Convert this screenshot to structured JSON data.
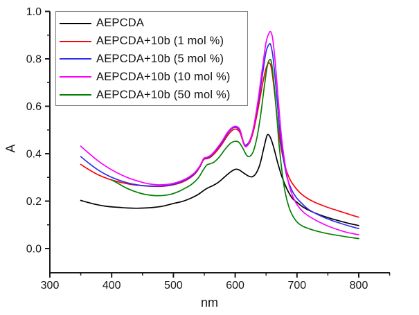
{
  "chart_data": {
    "type": "line",
    "title": "",
    "xlabel": "nm",
    "ylabel": "A",
    "xlim": [
      300,
      850
    ],
    "ylim": [
      -0.1,
      1.0
    ],
    "grid": false,
    "legend_position": "top-left",
    "x_ticks": [
      300,
      400,
      500,
      600,
      700,
      800
    ],
    "x_tick_labels": [
      "300",
      "400",
      "500",
      "600",
      "700",
      "800"
    ],
    "x_minor_ticks": [
      350,
      450,
      550,
      650,
      750,
      850
    ],
    "y_ticks": [
      0.0,
      0.2,
      0.4,
      0.6,
      0.8,
      1.0
    ],
    "y_tick_labels": [
      "0.0",
      "0.2",
      "0.4",
      "0.6",
      "0.8",
      "1.0"
    ],
    "y_minor_ticks": [
      0.1,
      0.3,
      0.5,
      0.7,
      0.9
    ],
    "axis_color": "#1a1a1a",
    "series": [
      {
        "name": "AEPCDA",
        "color": "#000000",
        "points": [
          [
            350,
            0.203
          ],
          [
            365,
            0.192
          ],
          [
            380,
            0.183
          ],
          [
            395,
            0.177
          ],
          [
            410,
            0.174
          ],
          [
            425,
            0.171
          ],
          [
            440,
            0.17
          ],
          [
            455,
            0.171
          ],
          [
            470,
            0.174
          ],
          [
            485,
            0.18
          ],
          [
            500,
            0.19
          ],
          [
            515,
            0.199
          ],
          [
            528,
            0.212
          ],
          [
            540,
            0.228
          ],
          [
            548,
            0.243
          ],
          [
            555,
            0.255
          ],
          [
            562,
            0.263
          ],
          [
            572,
            0.278
          ],
          [
            582,
            0.3
          ],
          [
            592,
            0.322
          ],
          [
            600,
            0.334
          ],
          [
            606,
            0.332
          ],
          [
            614,
            0.318
          ],
          [
            622,
            0.305
          ],
          [
            628,
            0.303
          ],
          [
            634,
            0.318
          ],
          [
            640,
            0.355
          ],
          [
            646,
            0.42
          ],
          [
            651,
            0.473
          ],
          [
            654,
            0.48
          ],
          [
            658,
            0.462
          ],
          [
            663,
            0.42
          ],
          [
            669,
            0.36
          ],
          [
            676,
            0.3
          ],
          [
            684,
            0.25
          ],
          [
            692,
            0.213
          ],
          [
            700,
            0.195
          ],
          [
            710,
            0.175
          ],
          [
            722,
            0.158
          ],
          [
            736,
            0.143
          ],
          [
            752,
            0.129
          ],
          [
            768,
            0.117
          ],
          [
            784,
            0.106
          ],
          [
            800,
            0.097
          ]
        ]
      },
      {
        "name": "AEPCDA+10b (1 mol %)",
        "color": "#fb0207",
        "points": [
          [
            350,
            0.355
          ],
          [
            363,
            0.333
          ],
          [
            376,
            0.314
          ],
          [
            390,
            0.298
          ],
          [
            404,
            0.286
          ],
          [
            418,
            0.277
          ],
          [
            432,
            0.27
          ],
          [
            446,
            0.266
          ],
          [
            460,
            0.263
          ],
          [
            474,
            0.262
          ],
          [
            488,
            0.264
          ],
          [
            500,
            0.269
          ],
          [
            512,
            0.278
          ],
          [
            524,
            0.293
          ],
          [
            535,
            0.315
          ],
          [
            543,
            0.345
          ],
          [
            549,
            0.375
          ],
          [
            554,
            0.379
          ],
          [
            560,
            0.385
          ],
          [
            568,
            0.405
          ],
          [
            578,
            0.438
          ],
          [
            588,
            0.478
          ],
          [
            596,
            0.5
          ],
          [
            602,
            0.503
          ],
          [
            608,
            0.488
          ],
          [
            614,
            0.44
          ],
          [
            618,
            0.432
          ],
          [
            624,
            0.45
          ],
          [
            630,
            0.5
          ],
          [
            637,
            0.588
          ],
          [
            644,
            0.69
          ],
          [
            650,
            0.76
          ],
          [
            655,
            0.783
          ],
          [
            659,
            0.755
          ],
          [
            664,
            0.65
          ],
          [
            669,
            0.52
          ],
          [
            675,
            0.415
          ],
          [
            681,
            0.345
          ],
          [
            688,
            0.295
          ],
          [
            696,
            0.262
          ],
          [
            705,
            0.235
          ],
          [
            716,
            0.213
          ],
          [
            728,
            0.196
          ],
          [
            742,
            0.181
          ],
          [
            756,
            0.168
          ],
          [
            772,
            0.155
          ],
          [
            786,
            0.143
          ],
          [
            800,
            0.132
          ]
        ]
      },
      {
        "name": "AEPCDA+10b (5 mol %)",
        "color": "#2e2eea",
        "points": [
          [
            350,
            0.388
          ],
          [
            363,
            0.36
          ],
          [
            376,
            0.335
          ],
          [
            390,
            0.313
          ],
          [
            404,
            0.296
          ],
          [
            418,
            0.283
          ],
          [
            432,
            0.273
          ],
          [
            446,
            0.267
          ],
          [
            460,
            0.264
          ],
          [
            474,
            0.263
          ],
          [
            488,
            0.265
          ],
          [
            500,
            0.271
          ],
          [
            512,
            0.281
          ],
          [
            524,
            0.296
          ],
          [
            535,
            0.318
          ],
          [
            543,
            0.348
          ],
          [
            549,
            0.378
          ],
          [
            554,
            0.382
          ],
          [
            560,
            0.39
          ],
          [
            568,
            0.412
          ],
          [
            578,
            0.445
          ],
          [
            588,
            0.487
          ],
          [
            596,
            0.508
          ],
          [
            602,
            0.51
          ],
          [
            608,
            0.495
          ],
          [
            614,
            0.445
          ],
          [
            618,
            0.437
          ],
          [
            624,
            0.458
          ],
          [
            630,
            0.512
          ],
          [
            637,
            0.61
          ],
          [
            644,
            0.73
          ],
          [
            650,
            0.83
          ],
          [
            655,
            0.862
          ],
          [
            658,
            0.855
          ],
          [
            662,
            0.79
          ],
          [
            667,
            0.65
          ],
          [
            672,
            0.5
          ],
          [
            678,
            0.38
          ],
          [
            684,
            0.3
          ],
          [
            691,
            0.25
          ],
          [
            699,
            0.215
          ],
          [
            708,
            0.19
          ],
          [
            718,
            0.166
          ],
          [
            730,
            0.148
          ],
          [
            744,
            0.131
          ],
          [
            758,
            0.117
          ],
          [
            772,
            0.105
          ],
          [
            786,
            0.094
          ],
          [
            800,
            0.084
          ]
        ]
      },
      {
        "name": "AEPCDA+10b (10 mol %)",
        "color": "#fb02fb",
        "points": [
          [
            350,
            0.432
          ],
          [
            363,
            0.402
          ],
          [
            376,
            0.374
          ],
          [
            390,
            0.348
          ],
          [
            404,
            0.326
          ],
          [
            418,
            0.308
          ],
          [
            432,
            0.293
          ],
          [
            446,
            0.282
          ],
          [
            460,
            0.273
          ],
          [
            474,
            0.269
          ],
          [
            488,
            0.27
          ],
          [
            500,
            0.275
          ],
          [
            512,
            0.285
          ],
          [
            524,
            0.3
          ],
          [
            535,
            0.322
          ],
          [
            543,
            0.35
          ],
          [
            549,
            0.38
          ],
          [
            554,
            0.385
          ],
          [
            560,
            0.393
          ],
          [
            568,
            0.415
          ],
          [
            578,
            0.45
          ],
          [
            588,
            0.492
          ],
          [
            596,
            0.512
          ],
          [
            602,
            0.515
          ],
          [
            608,
            0.5
          ],
          [
            614,
            0.442
          ],
          [
            618,
            0.43
          ],
          [
            624,
            0.455
          ],
          [
            630,
            0.515
          ],
          [
            637,
            0.625
          ],
          [
            644,
            0.76
          ],
          [
            650,
            0.87
          ],
          [
            655,
            0.91
          ],
          [
            658,
            0.912
          ],
          [
            661,
            0.88
          ],
          [
            665,
            0.78
          ],
          [
            670,
            0.62
          ],
          [
            675,
            0.47
          ],
          [
            681,
            0.35
          ],
          [
            687,
            0.27
          ],
          [
            694,
            0.215
          ],
          [
            702,
            0.178
          ],
          [
            711,
            0.152
          ],
          [
            722,
            0.132
          ],
          [
            735,
            0.113
          ],
          [
            750,
            0.095
          ],
          [
            765,
            0.081
          ],
          [
            780,
            0.069
          ],
          [
            800,
            0.058
          ]
        ]
      },
      {
        "name": "AEPCDA+10b (50 mol %)",
        "color": "#028002",
        "points": [
          [
            400,
            0.29
          ],
          [
            412,
            0.272
          ],
          [
            424,
            0.255
          ],
          [
            436,
            0.242
          ],
          [
            448,
            0.232
          ],
          [
            460,
            0.226
          ],
          [
            472,
            0.223
          ],
          [
            484,
            0.224
          ],
          [
            496,
            0.229
          ],
          [
            508,
            0.24
          ],
          [
            520,
            0.256
          ],
          [
            530,
            0.272
          ],
          [
            540,
            0.297
          ],
          [
            548,
            0.33
          ],
          [
            554,
            0.352
          ],
          [
            560,
            0.358
          ],
          [
            566,
            0.365
          ],
          [
            574,
            0.385
          ],
          [
            584,
            0.42
          ],
          [
            593,
            0.445
          ],
          [
            600,
            0.452
          ],
          [
            606,
            0.448
          ],
          [
            612,
            0.425
          ],
          [
            618,
            0.395
          ],
          [
            623,
            0.388
          ],
          [
            629,
            0.408
          ],
          [
            635,
            0.465
          ],
          [
            641,
            0.56
          ],
          [
            647,
            0.68
          ],
          [
            652,
            0.77
          ],
          [
            656,
            0.797
          ],
          [
            659,
            0.78
          ],
          [
            663,
            0.69
          ],
          [
            667,
            0.57
          ],
          [
            671,
            0.44
          ],
          [
            676,
            0.32
          ],
          [
            681,
            0.235
          ],
          [
            687,
            0.175
          ],
          [
            693,
            0.138
          ],
          [
            700,
            0.112
          ],
          [
            708,
            0.096
          ],
          [
            718,
            0.085
          ],
          [
            730,
            0.075
          ],
          [
            744,
            0.066
          ],
          [
            758,
            0.059
          ],
          [
            772,
            0.053
          ],
          [
            786,
            0.047
          ],
          [
            800,
            0.042
          ]
        ]
      }
    ]
  }
}
